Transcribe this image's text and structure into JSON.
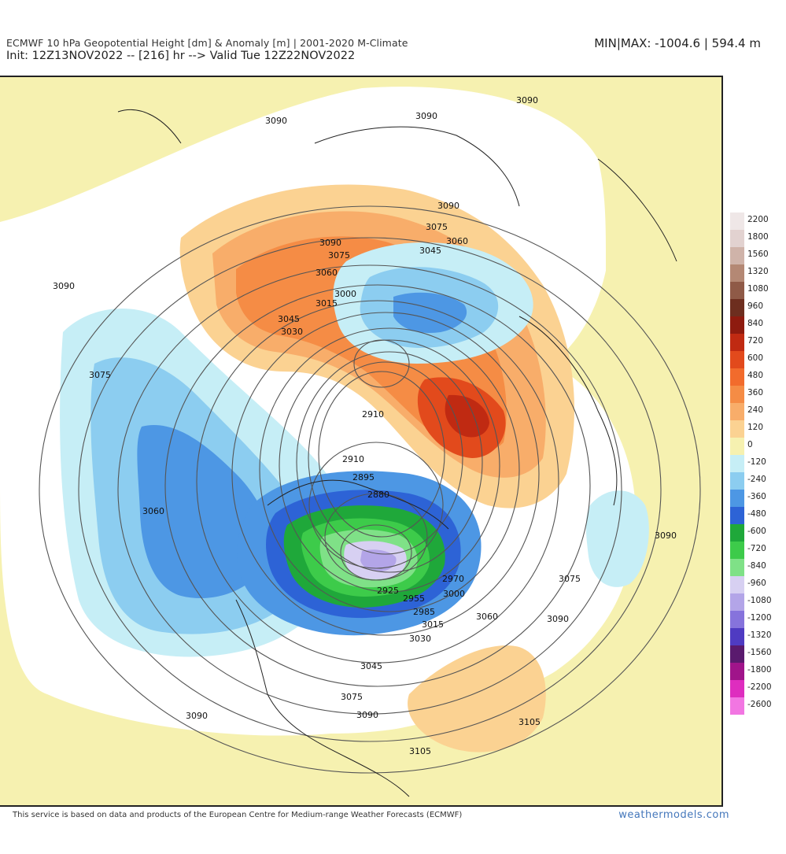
{
  "header": {
    "title_line1": "ECMWF 10 hPa Geopotential Height [dm] & Anomaly [m] | 2001-2020 M-Climate",
    "title_line2": "Init: 12Z13NOV2022 -- [216] hr --> Valid Tue 12Z22NOV2022",
    "minmax": "MIN|MAX: -1004.6 | 594.4 m"
  },
  "colorbar": [
    {
      "label": "2200",
      "color": "#efe7e7"
    },
    {
      "label": "1800",
      "color": "#e2d2d0"
    },
    {
      "label": "1560",
      "color": "#cfb3a9"
    },
    {
      "label": "1320",
      "color": "#b48874"
    },
    {
      "label": "1080",
      "color": "#8f5a47"
    },
    {
      "label": "960",
      "color": "#6d2e1f"
    },
    {
      "label": "840",
      "color": "#8e1b0f"
    },
    {
      "label": "720",
      "color": "#c02a12"
    },
    {
      "label": "600",
      "color": "#e24a1c"
    },
    {
      "label": "480",
      "color": "#f26b2c"
    },
    {
      "label": "360",
      "color": "#f58c45"
    },
    {
      "label": "240",
      "color": "#f8ad6a"
    },
    {
      "label": "120",
      "color": "#fbd292"
    },
    {
      "label": "0",
      "color": "#f6f1b0"
    },
    {
      "label": "-120",
      "color": "#c6eef6"
    },
    {
      "label": "-240",
      "color": "#8ccdf0"
    },
    {
      "label": "-360",
      "color": "#4d97e4"
    },
    {
      "label": "-480",
      "color": "#2d63d6"
    },
    {
      "label": "-600",
      "color": "#1fa83a"
    },
    {
      "label": "-720",
      "color": "#3dcb4a"
    },
    {
      "label": "-840",
      "color": "#7fe187"
    },
    {
      "label": "-960",
      "color": "#d7d0f2"
    },
    {
      "label": "-1080",
      "color": "#b3a5e8"
    },
    {
      "label": "-1200",
      "color": "#8673dc"
    },
    {
      "label": "-1320",
      "color": "#4f3bc2"
    },
    {
      "label": "-1560",
      "color": "#5a1a6e"
    },
    {
      "label": "-1800",
      "color": "#a0148a"
    },
    {
      "label": "-2200",
      "color": "#de2dbf"
    },
    {
      "label": "-2600",
      "color": "#f276e2"
    }
  ],
  "contour_labels": [
    "3090",
    "3090",
    "3090",
    "3090",
    "3075",
    "3060",
    "3045",
    "3090",
    "3075",
    "3060",
    "3015",
    "3000",
    "3045",
    "3030",
    "3090",
    "3075",
    "2910",
    "2910",
    "2895",
    "2880",
    "3060",
    "2925",
    "2955",
    "2970",
    "3000",
    "2985",
    "3015",
    "3030",
    "3045",
    "3075",
    "3090",
    "3060",
    "3090",
    "3075",
    "3090",
    "3105",
    "3105",
    "3090"
  ],
  "footer": {
    "attribution": "This service is based on data and products of the European Centre for Medium-range Weather Forecasts (ECMWF)",
    "brand": "weathermodels.com"
  }
}
